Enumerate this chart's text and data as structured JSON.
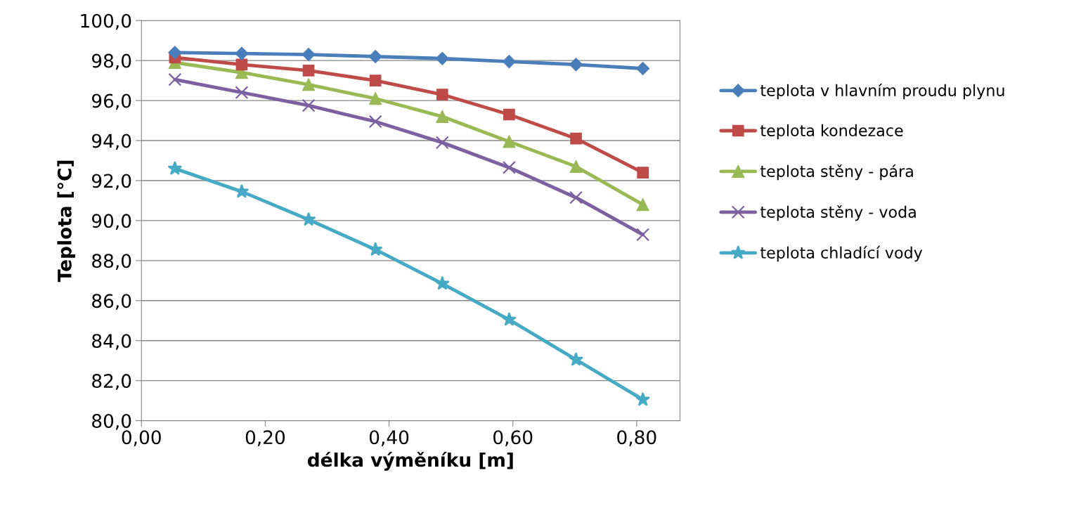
{
  "chart_data": {
    "type": "line",
    "xlabel": "délka výměníku [m]",
    "ylabel": "Teplota [°C]",
    "x": [
      0.054,
      0.162,
      0.27,
      0.378,
      0.486,
      0.594,
      0.702,
      0.81
    ],
    "series": [
      {
        "name": "teplota v hlavním proudu plynu",
        "color": "#4a7ebb",
        "marker": "diamond",
        "values": [
          98.4,
          98.35,
          98.3,
          98.2,
          98.1,
          97.95,
          97.8,
          97.6
        ]
      },
      {
        "name": "teplota kondezace",
        "color": "#be4b48",
        "marker": "square",
        "values": [
          98.15,
          97.8,
          97.5,
          97.0,
          96.3,
          95.3,
          94.1,
          92.4
        ]
      },
      {
        "name": "teplota stěny - pára",
        "color": "#98b954",
        "marker": "triangle",
        "values": [
          97.9,
          97.4,
          96.8,
          96.1,
          95.2,
          93.95,
          92.7,
          90.8
        ]
      },
      {
        "name": "teplota stěny - voda",
        "color": "#7d60a0",
        "marker": "cross",
        "values": [
          97.05,
          96.4,
          95.75,
          94.95,
          93.9,
          92.65,
          91.15,
          89.3
        ]
      },
      {
        "name": "teplota chladící vody",
        "color": "#46aac5",
        "marker": "star",
        "values": [
          92.6,
          91.45,
          90.05,
          88.55,
          86.85,
          85.05,
          83.05,
          81.05
        ]
      }
    ],
    "xlim": [
      0,
      0.87
    ],
    "xticks": [
      {
        "value": 0,
        "label": "0,00"
      },
      {
        "value": 0.2,
        "label": "0,20"
      },
      {
        "value": 0.4,
        "label": "0,40"
      },
      {
        "value": 0.6,
        "label": "0,60"
      },
      {
        "value": 0.8,
        "label": "0,80"
      }
    ],
    "ylim": [
      80,
      100
    ],
    "yticks": [
      {
        "value": 80,
        "label": "80,0"
      },
      {
        "value": 82,
        "label": "82,0"
      },
      {
        "value": 84,
        "label": "84,0"
      },
      {
        "value": 86,
        "label": "86,0"
      },
      {
        "value": 88,
        "label": "88,0"
      },
      {
        "value": 90,
        "label": "90,0"
      },
      {
        "value": 92,
        "label": "92,0"
      },
      {
        "value": 94,
        "label": "94,0"
      },
      {
        "value": 96,
        "label": "96,0"
      },
      {
        "value": 98,
        "label": "98,0"
      },
      {
        "value": 100,
        "label": "100,0"
      }
    ],
    "grid": "y",
    "legend": "right",
    "line_style": "solid"
  }
}
